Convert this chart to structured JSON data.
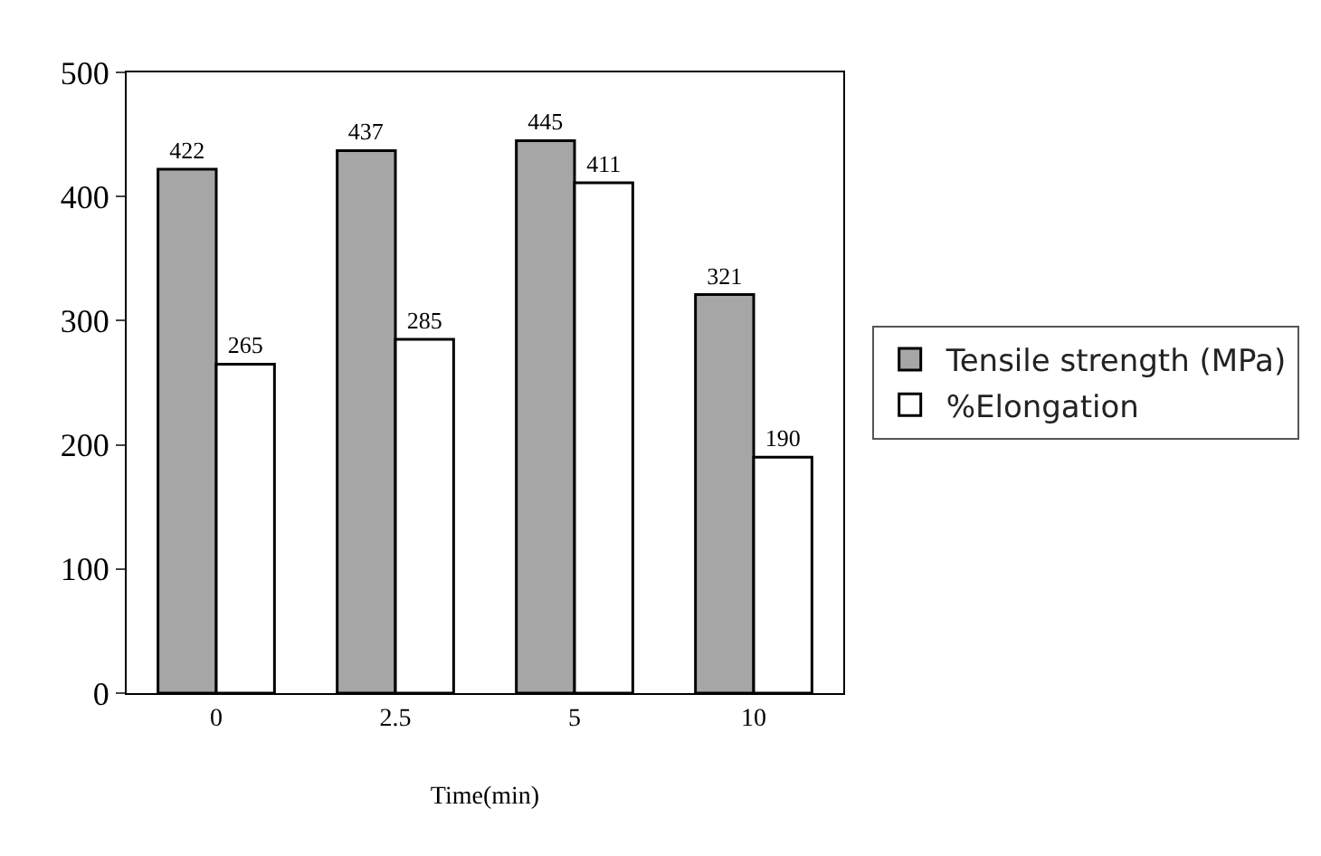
{
  "chart_data": {
    "type": "bar",
    "xlabel": "Time(min)",
    "categories": [
      "0",
      "2.5",
      "5",
      "10"
    ],
    "series": [
      {
        "name": "Tensile strength (MPa)",
        "color": "#a6a6a6",
        "values": [
          422,
          437,
          445,
          321
        ]
      },
      {
        "name": "%Elongation",
        "color": "#ffffff",
        "values": [
          265,
          285,
          411,
          190
        ]
      }
    ],
    "ylim": [
      0,
      500
    ],
    "yticks": [
      0,
      100,
      200,
      300,
      400,
      500
    ],
    "legend": "right",
    "data_labels": true
  }
}
